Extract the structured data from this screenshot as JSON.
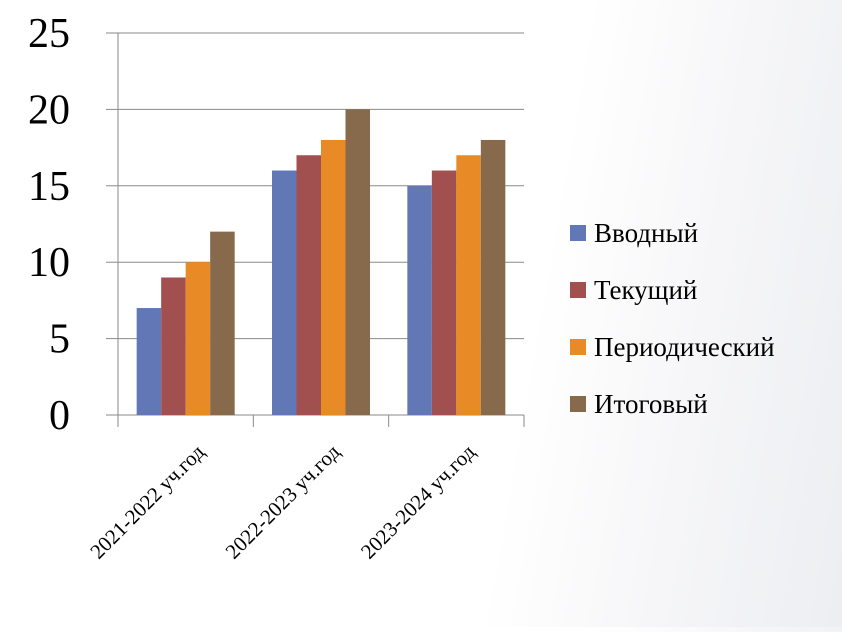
{
  "chart_data": {
    "type": "bar",
    "categories": [
      "2021-2022 уч.год",
      "2022-2023 уч.год",
      "2023-2024 уч.год"
    ],
    "series": [
      {
        "name": "Вводный",
        "values": [
          7,
          16,
          15
        ],
        "color": "#6277b6"
      },
      {
        "name": "Текущий",
        "values": [
          9,
          17,
          16
        ],
        "color": "#a14f4f"
      },
      {
        "name": "Периодический",
        "values": [
          10,
          18,
          17
        ],
        "color": "#e88a25"
      },
      {
        "name": "Итоговый",
        "values": [
          12,
          20,
          18
        ],
        "color": "#866a4b"
      }
    ],
    "yticks": [
      "0",
      "5",
      "10",
      "15",
      "20",
      "25"
    ],
    "ylim": [
      0,
      25
    ],
    "grid": true,
    "legend": "right",
    "title": "",
    "xlabel": "",
    "ylabel": ""
  }
}
